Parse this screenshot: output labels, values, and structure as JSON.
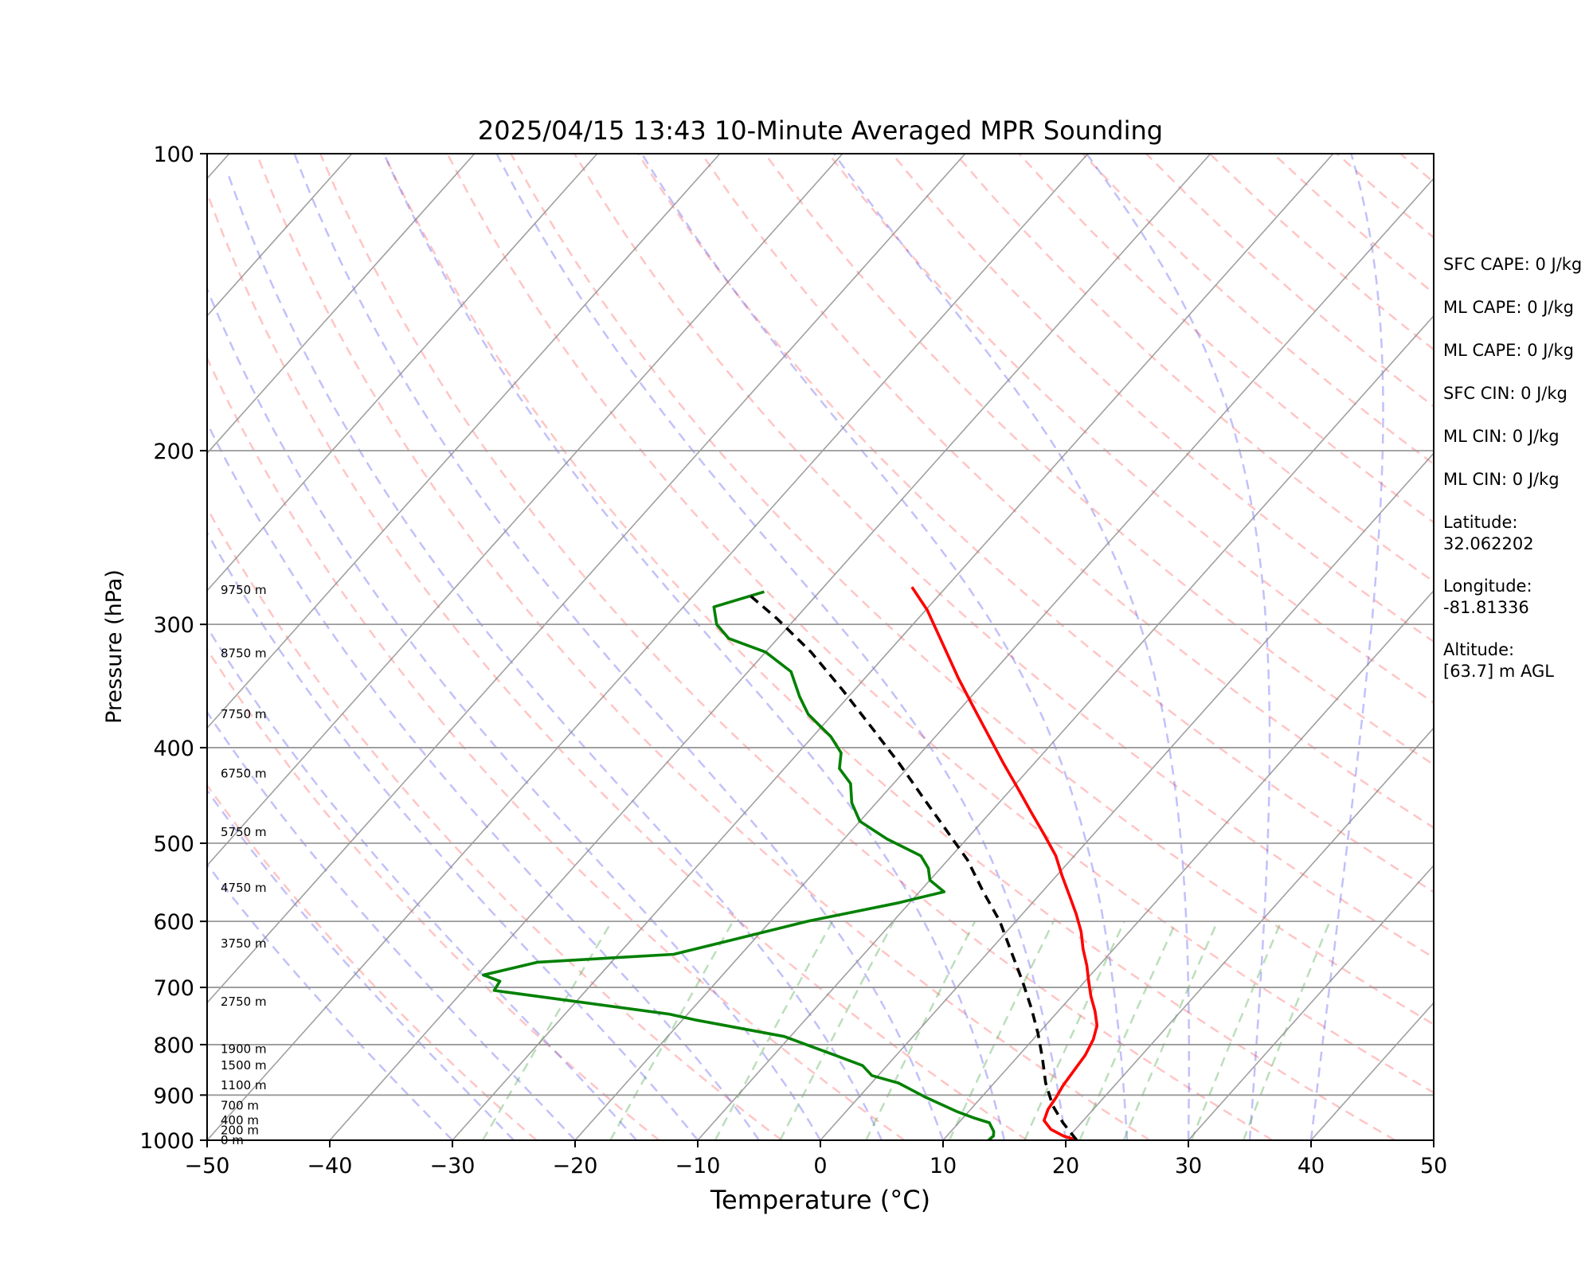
{
  "chart_data": {
    "type": "skew-t",
    "title": "2025/04/15 13:43 10-Minute Averaged MPR Sounding",
    "xlabel": "Temperature (°C)",
    "ylabel": "Pressure (hPa)",
    "xlim": [
      -50,
      50
    ],
    "ylim": [
      1000,
      100
    ],
    "y_scale": "log",
    "x_ticks": [
      "−50",
      "−40",
      "−30",
      "−20",
      "−10",
      "0",
      "10",
      "20",
      "30",
      "40",
      "50"
    ],
    "x_tick_values": [
      -50,
      -40,
      -30,
      -20,
      -10,
      0,
      10,
      20,
      30,
      40,
      50
    ],
    "y_ticks": [
      1000,
      900,
      800,
      700,
      600,
      500,
      400,
      300,
      200,
      100
    ],
    "grid": true,
    "height_labels": [
      {
        "p": 1000,
        "text": "0 m"
      },
      {
        "p": 977,
        "text": "200 m"
      },
      {
        "p": 955,
        "text": "400 m"
      },
      {
        "p": 922,
        "text": "700 m"
      },
      {
        "p": 880,
        "text": "1100 m"
      },
      {
        "p": 840,
        "text": "1500 m"
      },
      {
        "p": 808,
        "text": "1900 m"
      },
      {
        "p": 724,
        "text": "2750 m"
      },
      {
        "p": 632,
        "text": "3750 m"
      },
      {
        "p": 555,
        "text": "4750 m"
      },
      {
        "p": 487,
        "text": "5750 m"
      },
      {
        "p": 425,
        "text": "6750 m"
      },
      {
        "p": 370,
        "text": "7750 m"
      },
      {
        "p": 321,
        "text": "8750 m"
      },
      {
        "p": 277,
        "text": "9750 m"
      }
    ],
    "series": [
      {
        "name": "temperature",
        "color": "#ff0000",
        "points": [
          [
            20.9,
            1000
          ],
          [
            19.5,
            990
          ],
          [
            18.0,
            975
          ],
          [
            16.8,
            955
          ],
          [
            16.3,
            930
          ],
          [
            16.1,
            905
          ],
          [
            15.8,
            880
          ],
          [
            15.6,
            850
          ],
          [
            15.4,
            820
          ],
          [
            14.9,
            790
          ],
          [
            14.2,
            765
          ],
          [
            13.0,
            740
          ],
          [
            11.6,
            715
          ],
          [
            10.3,
            690
          ],
          [
            9.0,
            665
          ],
          [
            7.5,
            640
          ],
          [
            6.1,
            615
          ],
          [
            4.4,
            590
          ],
          [
            2.5,
            565
          ],
          [
            0.5,
            540
          ],
          [
            -1.5,
            515
          ],
          [
            -4.0,
            490
          ],
          [
            -6.7,
            465
          ],
          [
            -9.5,
            440
          ],
          [
            -12.5,
            415
          ],
          [
            -15.6,
            390
          ],
          [
            -18.9,
            365
          ],
          [
            -22.4,
            340
          ],
          [
            -26.0,
            315
          ],
          [
            -29.9,
            290
          ],
          [
            -32.8,
            275
          ]
        ]
      },
      {
        "name": "dewpoint",
        "color": "#008000",
        "points": [
          [
            13.7,
            1000
          ],
          [
            13.8,
            990
          ],
          [
            13.5,
            980
          ],
          [
            12.5,
            960
          ],
          [
            11.0,
            950
          ],
          [
            9.0,
            935
          ],
          [
            5.5,
            905
          ],
          [
            2.2,
            875
          ],
          [
            -0.5,
            860
          ],
          [
            -2.0,
            840
          ],
          [
            -5.0,
            820
          ],
          [
            -10.5,
            785
          ],
          [
            -19.0,
            755
          ],
          [
            -21.5,
            745
          ],
          [
            -37.5,
            705
          ],
          [
            -37.7,
            690
          ],
          [
            -39.5,
            680
          ],
          [
            -36.0,
            660
          ],
          [
            -25.5,
            648
          ],
          [
            -21.5,
            625
          ],
          [
            -17.0,
            600
          ],
          [
            -11.0,
            575
          ],
          [
            -8.0,
            560
          ],
          [
            -10.0,
            545
          ],
          [
            -11.0,
            530
          ],
          [
            -12.5,
            515
          ],
          [
            -16.5,
            495
          ],
          [
            -20.0,
            475
          ],
          [
            -22.0,
            455
          ],
          [
            -23.5,
            435
          ],
          [
            -25.5,
            420
          ],
          [
            -26.5,
            405
          ],
          [
            -28.5,
            390
          ],
          [
            -32.0,
            370
          ],
          [
            -34.0,
            355
          ],
          [
            -36.5,
            335
          ],
          [
            -40.0,
            320
          ],
          [
            -44.0,
            310
          ],
          [
            -46.0,
            300
          ],
          [
            -47.5,
            288
          ],
          [
            -44.5,
            278
          ]
        ]
      },
      {
        "name": "parcel",
        "color": "#000000",
        "style": "dashed",
        "points": [
          [
            20.9,
            1000
          ],
          [
            18.5,
            960
          ],
          [
            16.4,
            922
          ],
          [
            14.2,
            875
          ],
          [
            12.1,
            825
          ],
          [
            10.0,
            780
          ],
          [
            7.6,
            735
          ],
          [
            4.9,
            690
          ],
          [
            1.9,
            645
          ],
          [
            -1.3,
            600
          ],
          [
            -4.8,
            560
          ],
          [
            -8.4,
            520
          ],
          [
            -12.3,
            485
          ],
          [
            -16.5,
            450
          ],
          [
            -21.0,
            415
          ],
          [
            -25.8,
            382
          ],
          [
            -30.9,
            350
          ],
          [
            -36.3,
            320
          ],
          [
            -41.5,
            296
          ],
          [
            -45.5,
            280
          ]
        ]
      }
    ],
    "annotations": [
      {
        "name": "sfc-cape",
        "text": "SFC CAPE: 0 J/kg"
      },
      {
        "name": "ml-cape-1",
        "text": "ML CAPE: 0 J/kg"
      },
      {
        "name": "ml-cape-2",
        "text": "ML CAPE: 0 J/kg"
      },
      {
        "name": "sfc-cin",
        "text": "SFC CIN: 0 J/kg"
      },
      {
        "name": "ml-cin-1",
        "text": "ML CIN: 0 J/kg"
      },
      {
        "name": "ml-cin-2",
        "text": "ML CIN: 0 J/kg"
      },
      {
        "name": "latitude",
        "text": "Latitude:\n32.062202"
      },
      {
        "name": "longitude",
        "text": "Longitude:\n-81.81336"
      },
      {
        "name": "altitude",
        "text": "Altitude:\n[63.7] m AGL"
      }
    ]
  }
}
